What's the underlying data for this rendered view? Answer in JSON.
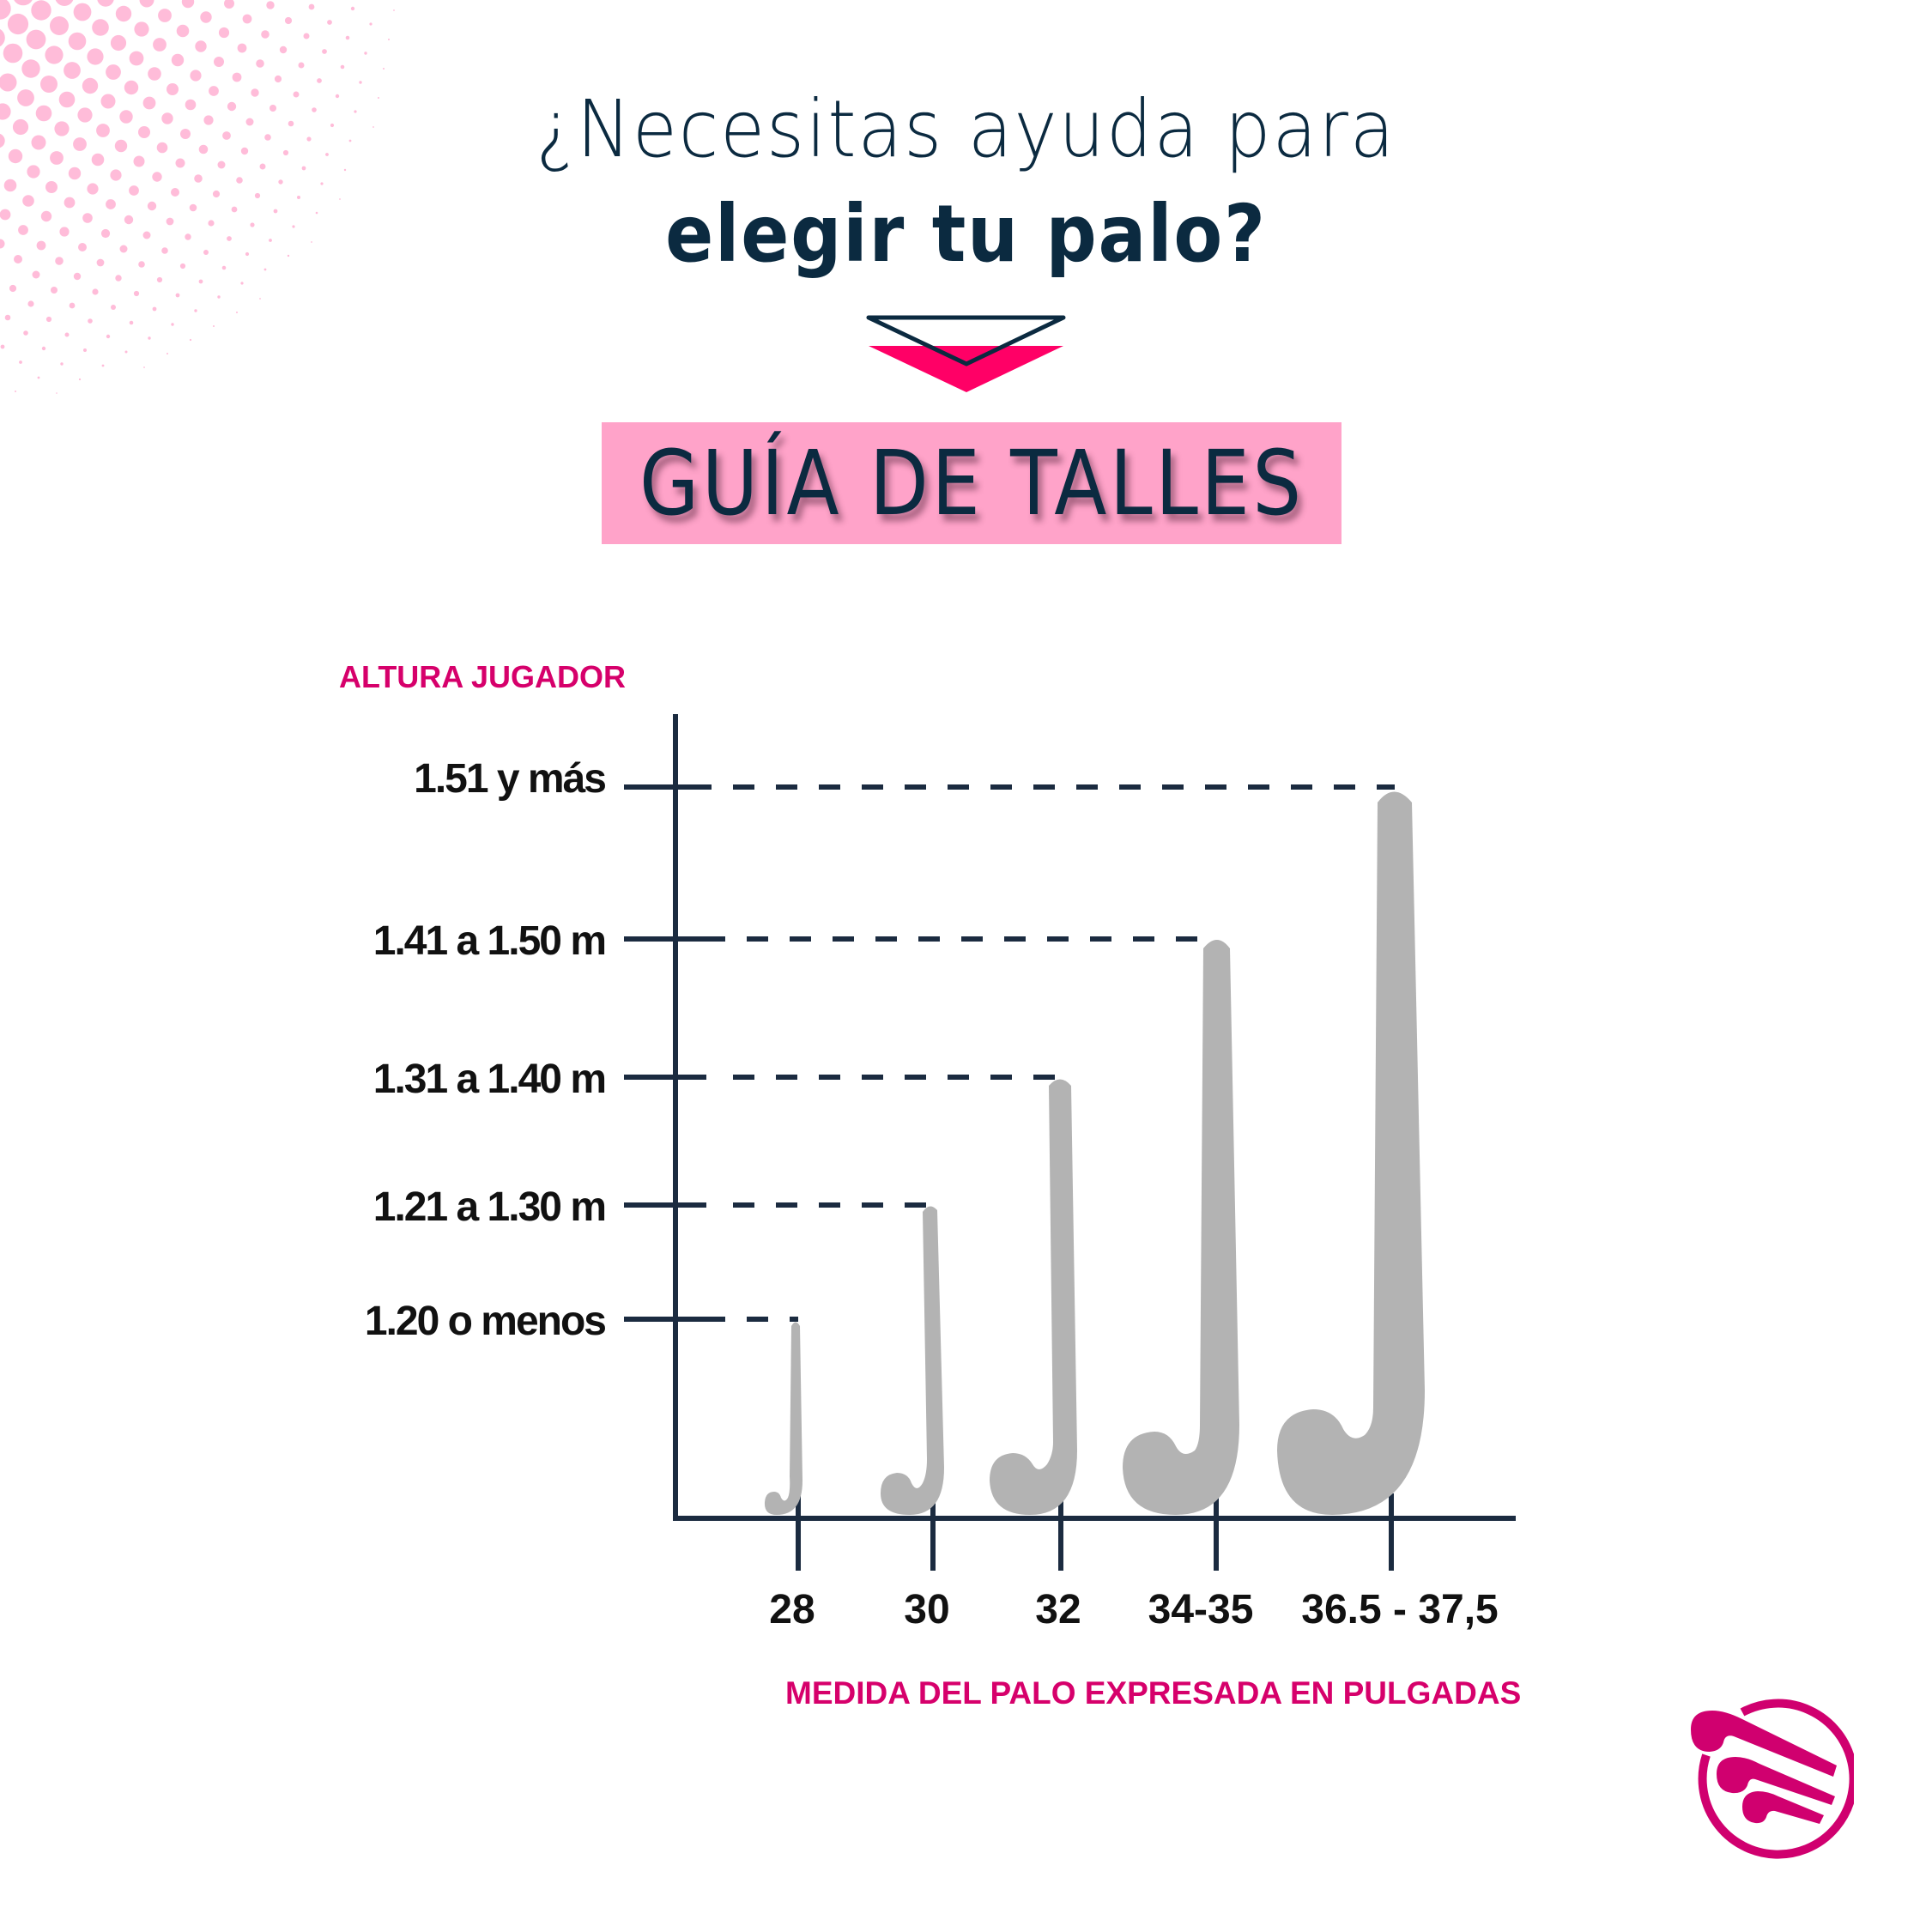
{
  "header": {
    "title_line1": "¿Necesitas ayuda para",
    "title_line2": "elegir tu palo?",
    "arrow_icon": "down-arrow-icon",
    "guide_label": "GUÍA DE TALLES"
  },
  "colors": {
    "navy": "#0B2A40",
    "axis": "#1B2B40",
    "pink_box": "#FFA3C9",
    "arrow_pink": "#FF0066",
    "magenta": "#D6006B",
    "stick_gray": "#B3B3B3",
    "dots_pink": "#FFBCD9"
  },
  "chart_data": {
    "type": "bar",
    "title": "GUÍA DE TALLES",
    "ylabel": "ALTURA JUGADOR",
    "xlabel": "MEDIDA DEL PALO EXPRESADA EN PULGADAS",
    "categories": [
      "28",
      "30",
      "32",
      "34-35",
      "36.5 - 37,5"
    ],
    "y_categories": [
      "1.20 o menos",
      "1.21 a 1.30 m",
      "1.31 a 1.40 m",
      "1.41 a 1.50 m",
      "1.51 y más"
    ],
    "series": [
      {
        "name": "Altura jugador → medida del palo (pulgadas)",
        "values": [
          "1.20 o menos",
          "1.21 a 1.30 m",
          "1.31 a 1.40 m",
          "1.41 a 1.50 m",
          "1.51 y más"
        ]
      }
    ],
    "mapping": [
      {
        "stick_length_in": "28",
        "player_height": "1.20 o menos"
      },
      {
        "stick_length_in": "30",
        "player_height": "1.21 a 1.30 m"
      },
      {
        "stick_length_in": "32",
        "player_height": "1.31 a 1.40 m"
      },
      {
        "stick_length_in": "34-35",
        "player_height": "1.41 a 1.50 m"
      },
      {
        "stick_length_in": "36.5 - 37,5",
        "player_height": "1.51 y más"
      }
    ],
    "bar_shape": "hockey-stick",
    "grid": false,
    "guide_lines": "dashed"
  },
  "chart": {
    "y_title": "ALTURA JUGADOR",
    "x_title": "MEDIDA DEL PALO EXPRESADA EN PULGADAS",
    "y_labels": [
      "1.51 y más",
      "1.41 a 1.50 m",
      "1.31 a 1.40 m",
      "1.21 a 1.30 m",
      "1.20 o menos"
    ],
    "x_labels": [
      "28",
      "30",
      "32",
      "34-35",
      "36.5 - 37,5"
    ]
  },
  "logo": {
    "icon": "hockey-sticks-logo-icon"
  }
}
